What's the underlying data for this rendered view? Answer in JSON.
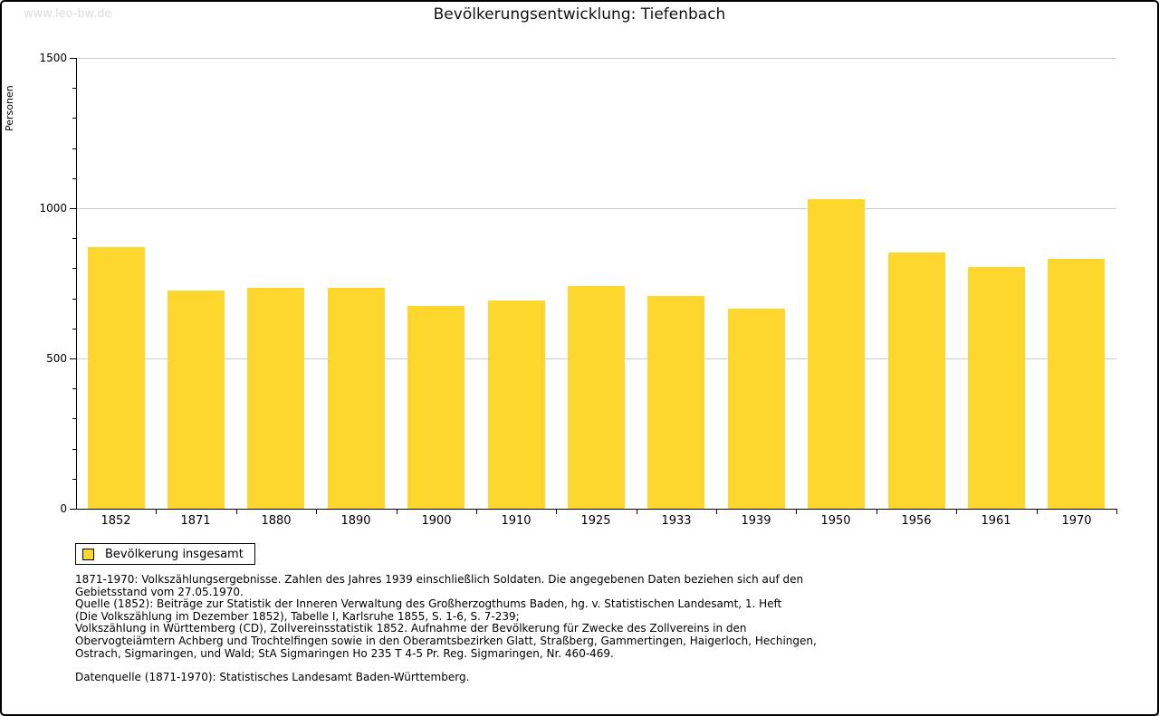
{
  "watermark": "www.leo-bw.de",
  "header": {
    "title": "Bevölkerungsentwicklung: Tiefenbach"
  },
  "legend": {
    "label": "Bevölkerung insgesamt"
  },
  "footnotes": [
    "1871-1970: Volkszählungsergebnisse. Zahlen des Jahres 1939 einschließlich Soldaten. Die angegebenen Daten beziehen sich auf den",
    "Gebietsstand vom 27.05.1970.",
    "Quelle (1852): Beiträge zur Statistik der Inneren Verwaltung des Großherzogthums Baden, hg. v. Statistischen Landesamt, 1. Heft",
    "(Die Volkszählung im Dezember 1852), Tabelle I, Karlsruhe 1855, S. 1-6, S. 7-239;",
    "Volkszählung in Württemberg (CD), Zollvereinsstatistik 1852. Aufnahme der Bevölkerung für Zwecke des Zollvereins in den",
    "Obervogteiämtern Achberg und Trochtelfingen sowie in den Oberamtsbezirken Glatt, Straßberg, Gammertingen, Haigerloch, Hechingen,",
    "Ostrach, Sigmaringen, und Wald; StA Sigmaringen Ho 235 T 4-5 Pr. Reg. Sigmaringen, Nr. 460-469."
  ],
  "datasource": "Datenquelle (1871-1970): Statistisches Landesamt Baden-Württemberg.",
  "colors": {
    "bar": "#FDD72D",
    "grid": "#CCCCCC",
    "axis": "#000000",
    "watermark": "#DCDCDC"
  },
  "chart_data": {
    "type": "bar",
    "title": "Bevölkerungsentwicklung: Tiefenbach",
    "categories": [
      "1852",
      "1871",
      "1880",
      "1890",
      "1900",
      "1910",
      "1925",
      "1933",
      "1939",
      "1950",
      "1956",
      "1961",
      "1970"
    ],
    "values": [
      870,
      726,
      736,
      734,
      674,
      694,
      741,
      708,
      665,
      1029,
      851,
      805,
      832
    ],
    "series_name": "Bevölkerung insgesamt",
    "xlabel": "",
    "ylabel": "Personen",
    "ylim": [
      0,
      1500
    ],
    "yticks_major": [
      0,
      500,
      1000,
      1500
    ],
    "ytick_minor_step": 100,
    "grid": "horizontal-at-major-ticks",
    "legend_position": "bottom-left",
    "bar_color": "#FDD72D"
  }
}
